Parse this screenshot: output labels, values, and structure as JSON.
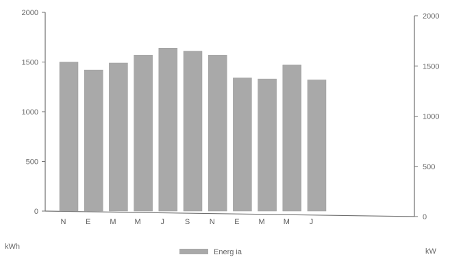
{
  "chart_data": {
    "type": "bar",
    "categories": [
      "N",
      "E",
      "M",
      "M",
      "J",
      "S",
      "N",
      "E",
      "M",
      "M",
      "J"
    ],
    "values": [
      1500,
      1420,
      1490,
      1570,
      1640,
      1610,
      1570,
      1340,
      1330,
      1470,
      1320
    ],
    "ylim_left": [
      0,
      2000
    ],
    "ylim_right": [
      0,
      2000
    ],
    "left_ticks": [
      "0",
      "500",
      "1000",
      "1500",
      "2000"
    ],
    "right_ticks": [
      "0",
      "500",
      "1000",
      "1500",
      "2000"
    ],
    "left_unit": "kWh",
    "right_unit": "kW",
    "legend": {
      "label": "Energ ia",
      "placement": "bottom-center"
    },
    "grid": false,
    "colors": {
      "bar": "#a9a9a9",
      "axis": "#6f6f6f",
      "text": "#666666"
    }
  }
}
